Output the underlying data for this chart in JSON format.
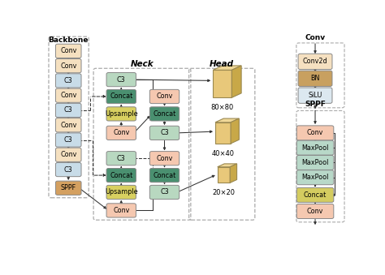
{
  "bg_color": "#ffffff",
  "backbone_title": "Backbone",
  "neck_title": "Neck",
  "head_title": "Head",
  "conv_legend_title": "Conv",
  "sppf_legend_title": "SPPF",
  "bb_labels": [
    "Conv",
    "Conv",
    "C3",
    "Conv",
    "C3",
    "Conv",
    "C3",
    "Conv",
    "C3",
    "SPPF"
  ],
  "bb_colors": [
    "#f5e0c0",
    "#f5e0c0",
    "#c8dce8",
    "#f5e0c0",
    "#c8dce8",
    "#f5e0c0",
    "#c8dce8",
    "#f5e0c0",
    "#c8dce8",
    "#d4a060"
  ],
  "conv_legend_blocks": [
    {
      "label": "Conv2d",
      "color": "#f5e0c0"
    },
    {
      "label": "BN",
      "color": "#c8a060"
    },
    {
      "label": "SiLU",
      "color": "#dce8f0"
    }
  ],
  "sppf_legend_blocks": [
    {
      "label": "Conv",
      "color": "#f5c8b0"
    },
    {
      "label": "MaxPool",
      "color": "#b8d8c8"
    },
    {
      "label": "MaxPool",
      "color": "#b8d8c8"
    },
    {
      "label": "MaxPool",
      "color": "#b8d8c8"
    },
    {
      "label": "Concat",
      "color": "#d4cc60"
    },
    {
      "label": "Conv",
      "color": "#f5c8b0"
    }
  ]
}
